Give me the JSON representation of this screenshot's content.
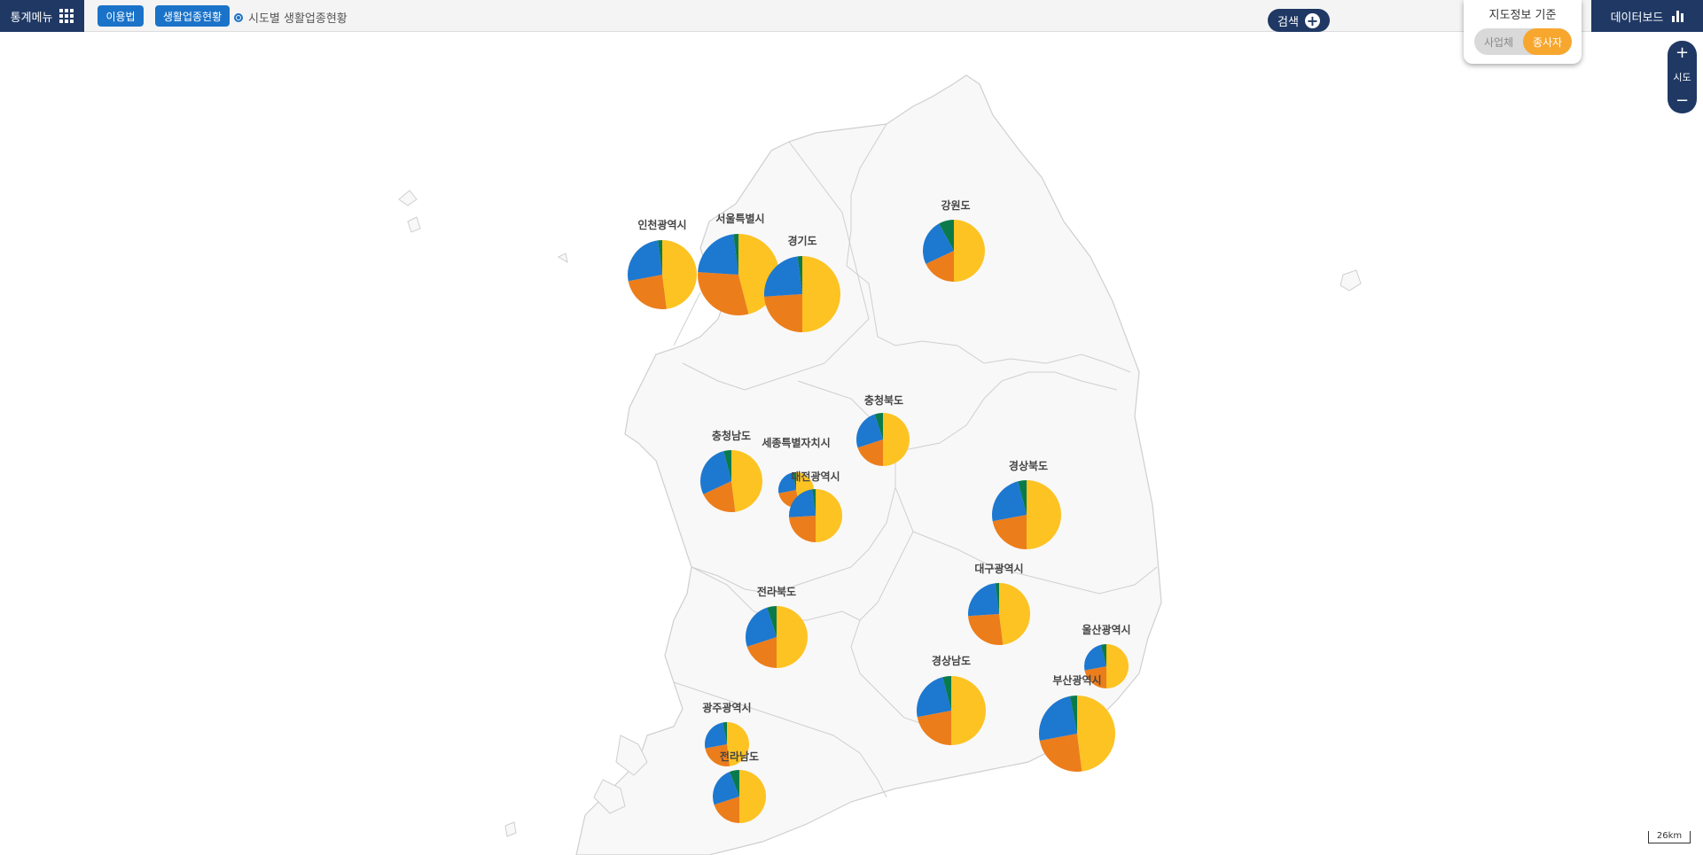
{
  "topbar": {
    "menu_label": "통계메뉴",
    "howto_label": "이용법",
    "status_label": "생활업종현황",
    "breadcrumb": "시도별 생활업종현황",
    "search_label": "검색",
    "dashboard_label": "데이터보드"
  },
  "basis_panel": {
    "title": "지도정보 기준",
    "options": [
      "사업체",
      "종사자"
    ],
    "selected": "종사자"
  },
  "zoom_control": {
    "plus": "+",
    "label": "시도",
    "minus": "−"
  },
  "scale_label": "26km",
  "colors": {
    "yellow": "#fdc323",
    "orange": "#ec7d1b",
    "blue": "#1d78d0",
    "green": "#0b7a4b",
    "land": "#f8f8f8",
    "border": "#cfcfcf"
  },
  "regions": [
    {
      "name": "인천광역시",
      "shares": [
        0.48,
        0.24,
        0.26,
        0.02
      ]
    },
    {
      "name": "서울특별시",
      "shares": [
        0.46,
        0.3,
        0.22,
        0.02
      ]
    },
    {
      "name": "경기도",
      "shares": [
        0.5,
        0.24,
        0.24,
        0.02
      ]
    },
    {
      "name": "강원도",
      "shares": [
        0.5,
        0.18,
        0.24,
        0.08
      ]
    },
    {
      "name": "충청북도",
      "shares": [
        0.5,
        0.2,
        0.25,
        0.05
      ]
    },
    {
      "name": "충청남도",
      "shares": [
        0.48,
        0.2,
        0.28,
        0.04
      ]
    },
    {
      "name": "세종특별자치시",
      "shares": [
        0.47,
        0.25,
        0.25,
        0.03
      ]
    },
    {
      "name": "대전광역시",
      "shares": [
        0.5,
        0.24,
        0.24,
        0.02
      ]
    },
    {
      "name": "경상북도",
      "shares": [
        0.5,
        0.22,
        0.24,
        0.04
      ]
    },
    {
      "name": "대구광역시",
      "shares": [
        0.48,
        0.26,
        0.24,
        0.02
      ]
    },
    {
      "name": "전라북도",
      "shares": [
        0.5,
        0.2,
        0.25,
        0.05
      ]
    },
    {
      "name": "울산광역시",
      "shares": [
        0.5,
        0.22,
        0.24,
        0.04
      ]
    },
    {
      "name": "경상남도",
      "shares": [
        0.5,
        0.22,
        0.24,
        0.04
      ]
    },
    {
      "name": "부산광역시",
      "shares": [
        0.48,
        0.24,
        0.25,
        0.03
      ]
    },
    {
      "name": "광주광역시",
      "shares": [
        0.48,
        0.24,
        0.25,
        0.03
      ]
    },
    {
      "name": "전라남도",
      "shares": [
        0.5,
        0.2,
        0.24,
        0.06
      ]
    }
  ]
}
